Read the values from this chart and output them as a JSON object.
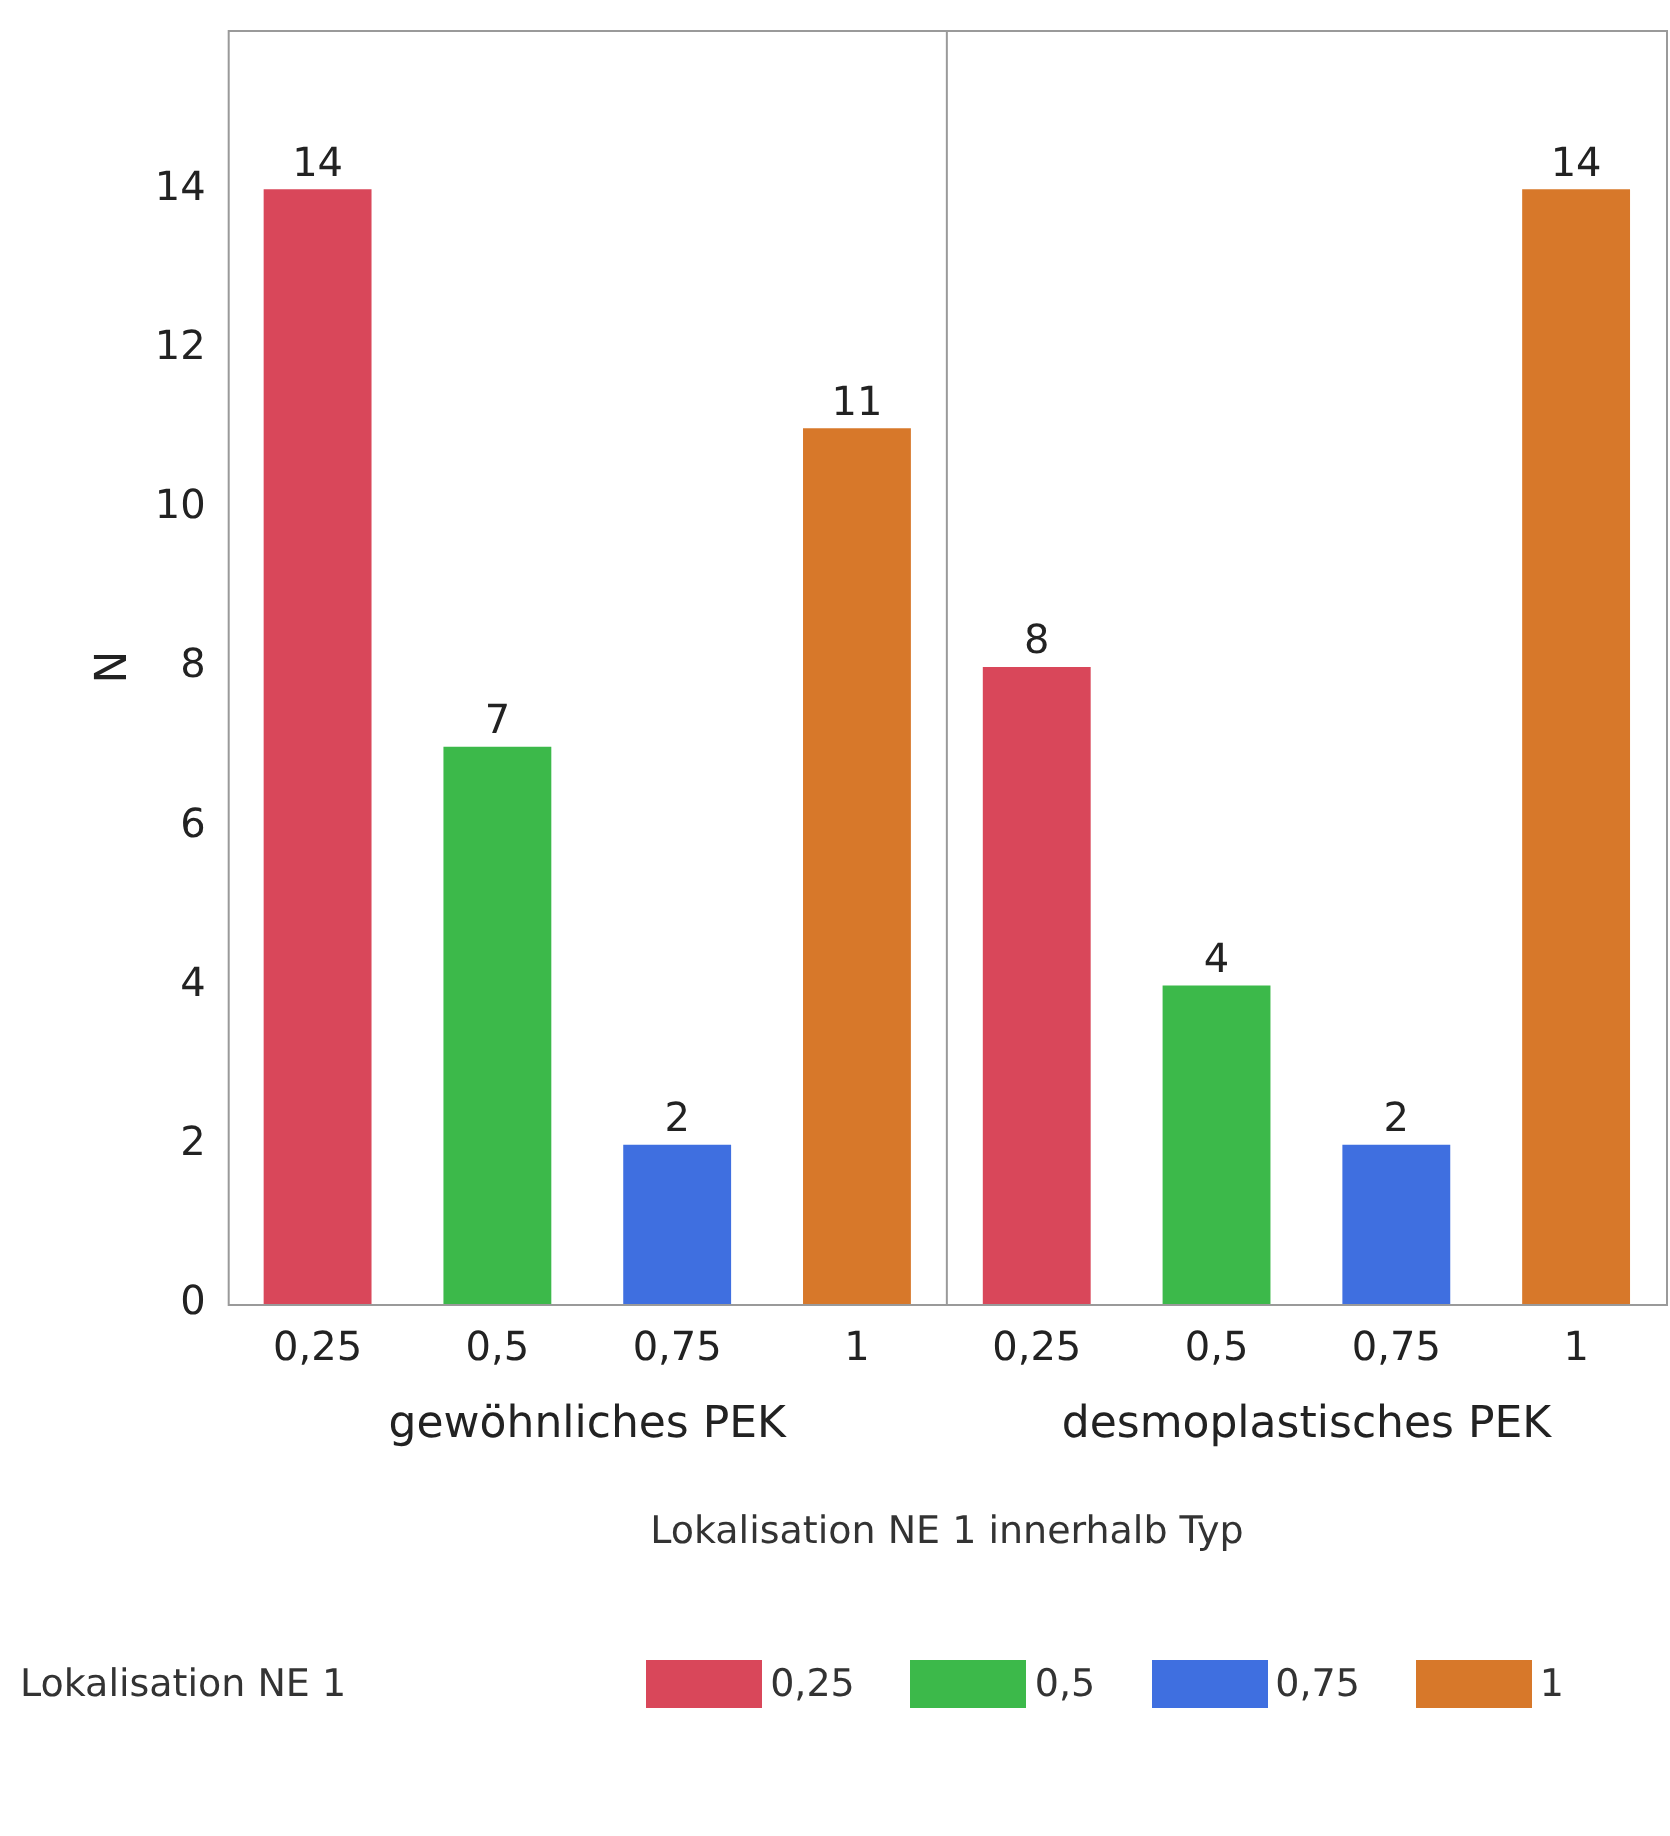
{
  "chart_data": {
    "type": "bar",
    "ylabel": "N",
    "xlabel": "Lokalisation NE 1 innerhalb Typ",
    "legend_title": "Lokalisation NE 1",
    "categories": [
      "0,25",
      "0,5",
      "0,75",
      "1",
      "0,25",
      "0,5",
      "0,75",
      "1"
    ],
    "annotations": [
      "gewöhnliches PEK",
      "desmoplastisches PEK"
    ],
    "series": [
      {
        "name": "0,25",
        "color": "#d9475a",
        "values": [
          14,
          null,
          null,
          null,
          8,
          null,
          null,
          null
        ]
      },
      {
        "name": "0,5",
        "color": "#3cb94a",
        "values": [
          null,
          7,
          null,
          null,
          null,
          4,
          null,
          null
        ]
      },
      {
        "name": "0,75",
        "color": "#3f6fe0",
        "values": [
          null,
          null,
          2,
          null,
          null,
          null,
          2,
          null
        ]
      },
      {
        "name": "1",
        "color": "#d7782a",
        "values": [
          null,
          null,
          null,
          11,
          null,
          null,
          null,
          14
        ]
      }
    ],
    "ylim": [
      0,
      16
    ],
    "yticks": [
      0,
      2,
      4,
      6,
      8,
      10,
      12,
      14
    ],
    "grid": false,
    "data_labels": true,
    "legend": "bottom"
  }
}
